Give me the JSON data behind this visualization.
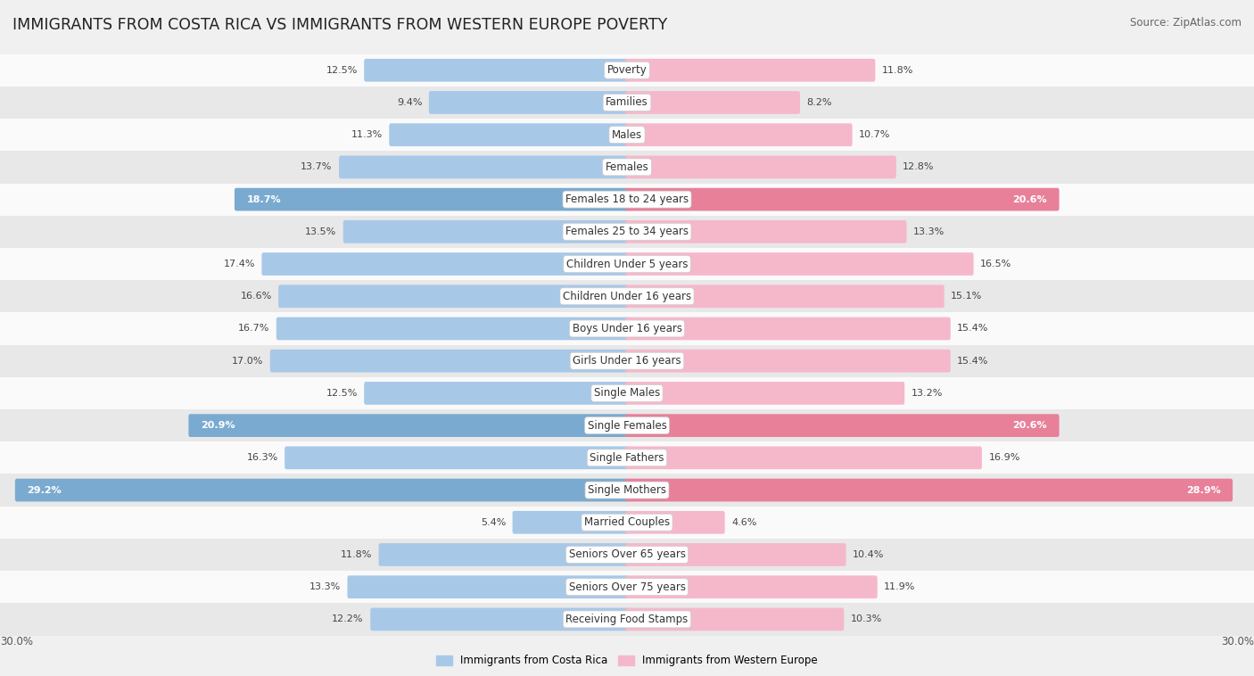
{
  "title": "IMMIGRANTS FROM COSTA RICA VS IMMIGRANTS FROM WESTERN EUROPE POVERTY",
  "source": "Source: ZipAtlas.com",
  "categories": [
    "Poverty",
    "Families",
    "Males",
    "Females",
    "Females 18 to 24 years",
    "Females 25 to 34 years",
    "Children Under 5 years",
    "Children Under 16 years",
    "Boys Under 16 years",
    "Girls Under 16 years",
    "Single Males",
    "Single Females",
    "Single Fathers",
    "Single Mothers",
    "Married Couples",
    "Seniors Over 65 years",
    "Seniors Over 75 years",
    "Receiving Food Stamps"
  ],
  "left_values": [
    12.5,
    9.4,
    11.3,
    13.7,
    18.7,
    13.5,
    17.4,
    16.6,
    16.7,
    17.0,
    12.5,
    20.9,
    16.3,
    29.2,
    5.4,
    11.8,
    13.3,
    12.2
  ],
  "right_values": [
    11.8,
    8.2,
    10.7,
    12.8,
    20.6,
    13.3,
    16.5,
    15.1,
    15.4,
    15.4,
    13.2,
    20.6,
    16.9,
    28.9,
    4.6,
    10.4,
    11.9,
    10.3
  ],
  "left_color_normal": "#a8c8e8",
  "right_color_normal": "#f5b8cb",
  "left_color_highlight": "#7aaad0",
  "right_color_highlight": "#e8809a",
  "highlight_threshold": 18.0,
  "left_label": "Immigrants from Costa Rica",
  "right_label": "Immigrants from Western Europe",
  "x_max": 30.0,
  "bg_color": "#f0f0f0",
  "row_bg_light": "#fafafa",
  "row_bg_dark": "#e8e8e8",
  "title_fontsize": 12.5,
  "source_fontsize": 8.5,
  "label_fontsize": 8.5,
  "value_fontsize": 8.0,
  "axis_label_fontsize": 8.5
}
